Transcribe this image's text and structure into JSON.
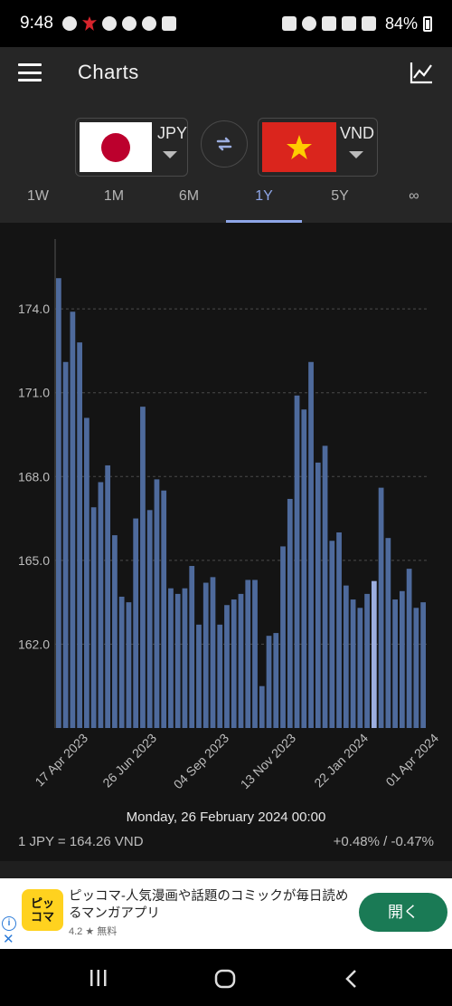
{
  "status_bar": {
    "time": "9:48",
    "battery": "84%"
  },
  "app_bar": {
    "title": "Charts"
  },
  "selector": {
    "from": {
      "code": "JPY"
    },
    "to": {
      "code": "VND"
    }
  },
  "tabs": [
    {
      "label": "1W"
    },
    {
      "label": "1M"
    },
    {
      "label": "6M"
    },
    {
      "label": "1Y",
      "active": true
    },
    {
      "label": "5Y"
    },
    {
      "label": "∞"
    }
  ],
  "chart_data": {
    "type": "bar",
    "ylim": [
      159.0,
      176.5
    ],
    "y_ticks": [
      162.0,
      165.0,
      168.0,
      171.0,
      174.0
    ],
    "y_tick_labels": [
      "162.0",
      "165.0",
      "168.0",
      "171.0",
      "174.0"
    ],
    "x_tick_labels": [
      "17 Apr 2023",
      "26 Jun 2023",
      "04 Sep 2023",
      "13 Nov 2023",
      "22 Jan 2024",
      "01 Apr 2024"
    ],
    "values": [
      175.1,
      172.1,
      173.9,
      172.8,
      170.1,
      166.9,
      167.8,
      168.4,
      165.9,
      163.7,
      163.5,
      166.5,
      170.5,
      166.8,
      167.9,
      167.5,
      164.0,
      163.8,
      164.0,
      164.8,
      162.7,
      164.2,
      164.4,
      162.7,
      163.4,
      163.6,
      163.8,
      164.3,
      164.3,
      160.5,
      162.3,
      162.4,
      165.5,
      167.2,
      170.9,
      170.4,
      172.1,
      168.5,
      169.1,
      165.7,
      166.0,
      164.1,
      163.6,
      163.3,
      163.8,
      164.26,
      167.6,
      165.8,
      163.6,
      163.9,
      164.7,
      163.3,
      163.5
    ],
    "highlight_index": 45,
    "bar_color": "#4e6a9c",
    "highlight_color": "#9caee0",
    "grid": true
  },
  "selection": {
    "date": "Monday, 26 February 2024 00:00",
    "rate": "1 JPY = 164.26 VND",
    "change": "+0.48% / -0.47%"
  },
  "ad": {
    "logo_text": "ピッコマ",
    "title": "ピッコマ-人気漫画や話題のコミックが毎日読めるマンガアプリ",
    "rating": "4.2 ★ 無料",
    "button": "開く",
    "info_icon": "i",
    "close_icon": "✕"
  },
  "colors": {
    "accent": "#8ea6e8",
    "background": "#1f1f1f",
    "chart_bg": "#141414",
    "ad_button": "#1a7a55"
  }
}
